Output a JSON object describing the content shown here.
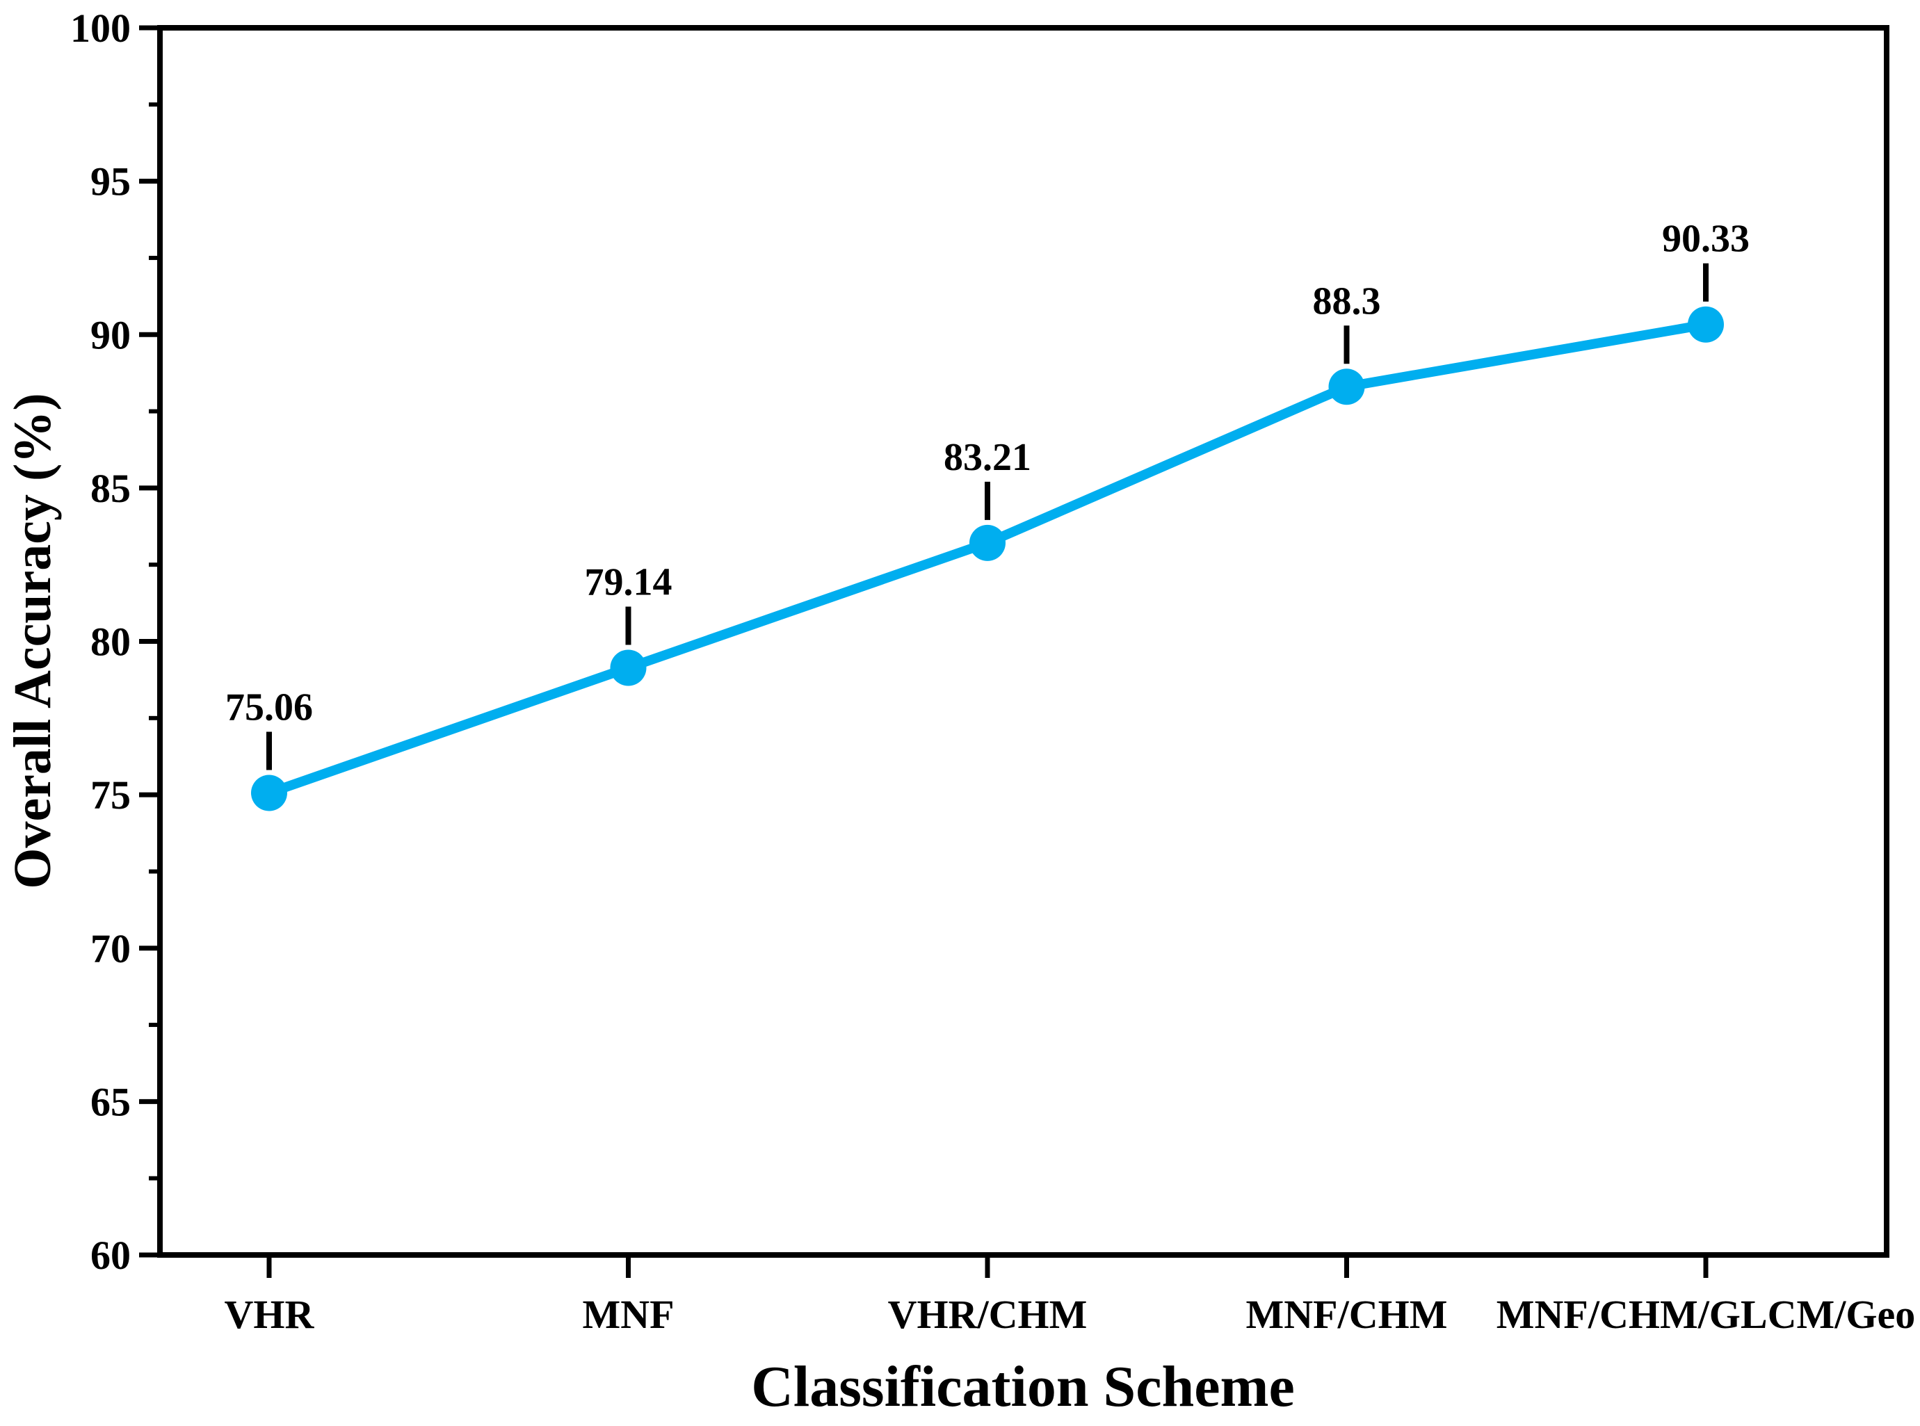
{
  "chart_data": {
    "type": "line",
    "xlabel": "Classification Scheme",
    "ylabel": "Overall Accuracy (%)",
    "categories": [
      "VHR",
      "MNF",
      "VHR/CHM",
      "MNF/CHM",
      "MNF/CHM/GLCM/Geo"
    ],
    "values": [
      75.06,
      79.14,
      83.21,
      88.3,
      90.33
    ],
    "point_labels": [
      "75.06",
      "79.14",
      "83.21",
      "88.3",
      "90.33"
    ],
    "ylim": [
      60,
      100
    ],
    "y_major_step": 5,
    "y_minor_step": 2.5,
    "y_tick_labels": [
      "60",
      "65",
      "70",
      "75",
      "80",
      "85",
      "90",
      "95",
      "100"
    ],
    "grid": "off",
    "legend": "none",
    "line_color": "#00AEEF",
    "axis_color": "#000000",
    "text_color": "#000000",
    "background_color": "#ffffff"
  }
}
